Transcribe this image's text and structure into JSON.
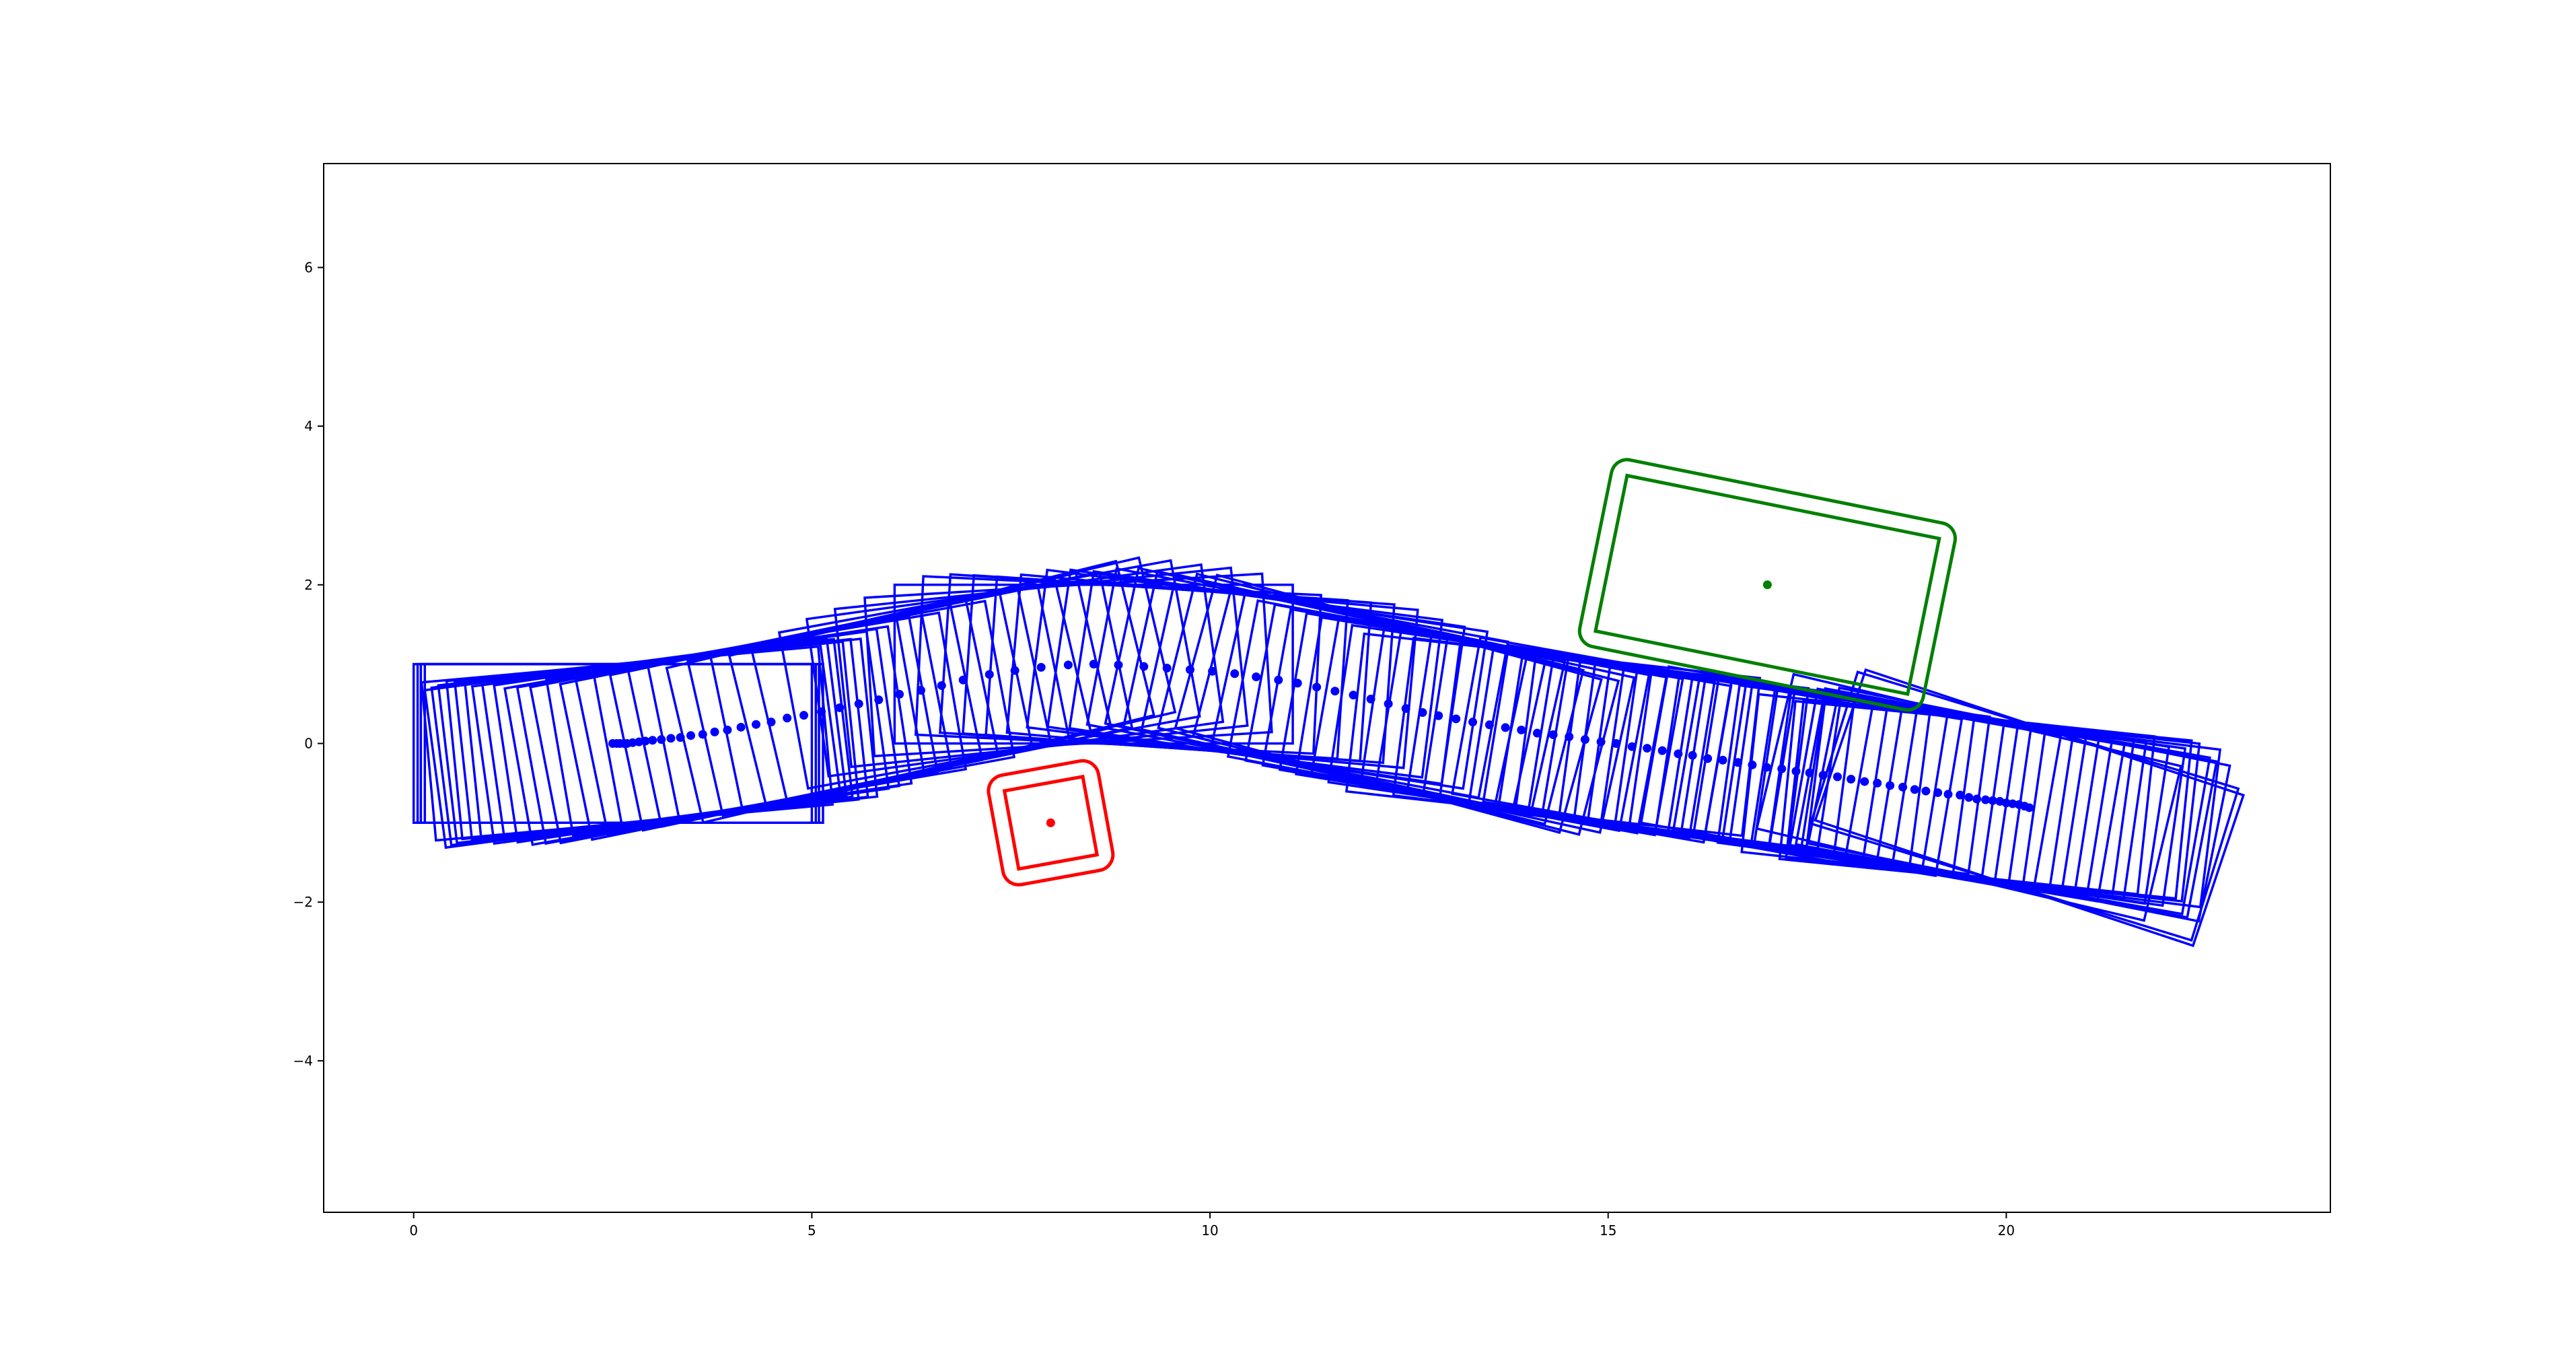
{
  "chart_data": {
    "type": "scatter",
    "title": "",
    "xlabel": "",
    "ylabel": "",
    "xlim": [
      -1.13,
      24.07
    ],
    "ylim": [
      -5.91,
      7.31
    ],
    "aspect": "equal",
    "grid": false,
    "legend": "none",
    "xticks": [
      0,
      5,
      10,
      15,
      20
    ],
    "xtick_labels": [
      "0",
      "5",
      "10",
      "15",
      "20"
    ],
    "yticks": [
      -4,
      -2,
      0,
      2,
      4,
      6
    ],
    "ytick_labels": [
      "−4",
      "−2",
      "0",
      "2",
      "4",
      "6"
    ],
    "vehicle": {
      "color": "#0000ff",
      "length": 5,
      "width": 2,
      "path": [
        [
          2.5,
          0.0
        ],
        [
          2.55,
          0.0
        ],
        [
          2.59,
          0.0
        ],
        [
          2.64,
          0.0
        ],
        [
          2.68,
          0.0
        ],
        [
          2.75,
          0.01
        ],
        [
          2.83,
          0.02
        ],
        [
          2.91,
          0.03
        ],
        [
          3.0,
          0.04
        ],
        [
          3.11,
          0.05
        ],
        [
          3.23,
          0.065
        ],
        [
          3.35,
          0.075
        ],
        [
          3.48,
          0.1
        ],
        [
          3.63,
          0.115
        ],
        [
          3.78,
          0.145
        ],
        [
          3.94,
          0.17
        ],
        [
          4.11,
          0.205
        ],
        [
          4.3,
          0.24
        ],
        [
          4.49,
          0.27
        ],
        [
          4.69,
          0.32
        ],
        [
          4.9,
          0.355
        ],
        [
          5.12,
          0.4
        ],
        [
          5.35,
          0.45
        ],
        [
          5.59,
          0.5
        ],
        [
          5.84,
          0.55
        ],
        [
          6.1,
          0.62
        ],
        [
          6.37,
          0.67
        ],
        [
          6.63,
          0.73
        ],
        [
          6.9,
          0.8
        ],
        [
          7.23,
          0.87
        ],
        [
          7.55,
          0.92
        ],
        [
          7.88,
          0.96
        ],
        [
          8.22,
          0.99
        ],
        [
          8.54,
          1.0
        ],
        [
          8.85,
          0.99
        ],
        [
          9.17,
          0.97
        ],
        [
          9.46,
          0.95
        ],
        [
          9.75,
          0.93
        ],
        [
          10.03,
          0.91
        ],
        [
          10.31,
          0.88
        ],
        [
          10.58,
          0.84
        ],
        [
          10.86,
          0.8
        ],
        [
          11.1,
          0.76
        ],
        [
          11.34,
          0.71
        ],
        [
          11.57,
          0.66
        ],
        [
          11.8,
          0.61
        ],
        [
          12.02,
          0.56
        ],
        [
          12.24,
          0.5
        ],
        [
          12.46,
          0.44
        ],
        [
          12.67,
          0.39
        ],
        [
          12.87,
          0.35
        ],
        [
          13.09,
          0.31
        ],
        [
          13.3,
          0.27
        ],
        [
          13.51,
          0.235
        ],
        [
          13.71,
          0.2
        ],
        [
          13.91,
          0.17
        ],
        [
          14.11,
          0.13
        ],
        [
          14.31,
          0.11
        ],
        [
          14.51,
          0.085
        ],
        [
          14.71,
          0.05
        ],
        [
          14.91,
          0.02
        ],
        [
          15.1,
          0.0
        ],
        [
          15.3,
          -0.04
        ],
        [
          15.49,
          -0.06
        ],
        [
          15.68,
          -0.09
        ],
        [
          15.88,
          -0.13
        ],
        [
          16.06,
          -0.15
        ],
        [
          16.25,
          -0.19
        ],
        [
          16.44,
          -0.21
        ],
        [
          16.63,
          -0.24
        ],
        [
          16.81,
          -0.27
        ],
        [
          16.99,
          -0.3
        ],
        [
          17.18,
          -0.32
        ],
        [
          17.36,
          -0.35
        ],
        [
          17.53,
          -0.37
        ],
        [
          17.7,
          -0.4
        ],
        [
          17.88,
          -0.42
        ],
        [
          18.05,
          -0.45
        ],
        [
          18.22,
          -0.48
        ],
        [
          18.38,
          -0.5
        ],
        [
          18.54,
          -0.53
        ],
        [
          18.7,
          -0.55
        ],
        [
          18.85,
          -0.58
        ],
        [
          18.99,
          -0.6
        ],
        [
          19.14,
          -0.62
        ],
        [
          19.27,
          -0.64
        ],
        [
          19.42,
          -0.65
        ],
        [
          19.53,
          -0.68
        ],
        [
          19.63,
          -0.7
        ],
        [
          19.74,
          -0.71
        ],
        [
          19.83,
          -0.72
        ],
        [
          19.92,
          -0.73
        ],
        [
          20.0,
          -0.75
        ],
        [
          20.08,
          -0.76
        ],
        [
          20.16,
          -0.77
        ],
        [
          20.23,
          -0.79
        ],
        [
          20.29,
          -0.81
        ]
      ]
    },
    "obstacles": [
      {
        "color": "#ff0000",
        "center": [
          8,
          -1
        ],
        "length": 1.0,
        "width": 1.0,
        "angle_rad": 0.18,
        "margin": 0.2
      },
      {
        "color": "#008000",
        "center": [
          17,
          2
        ],
        "length": 4.0,
        "width": 2.0,
        "angle_rad": -0.2,
        "margin": 0.2
      }
    ]
  }
}
